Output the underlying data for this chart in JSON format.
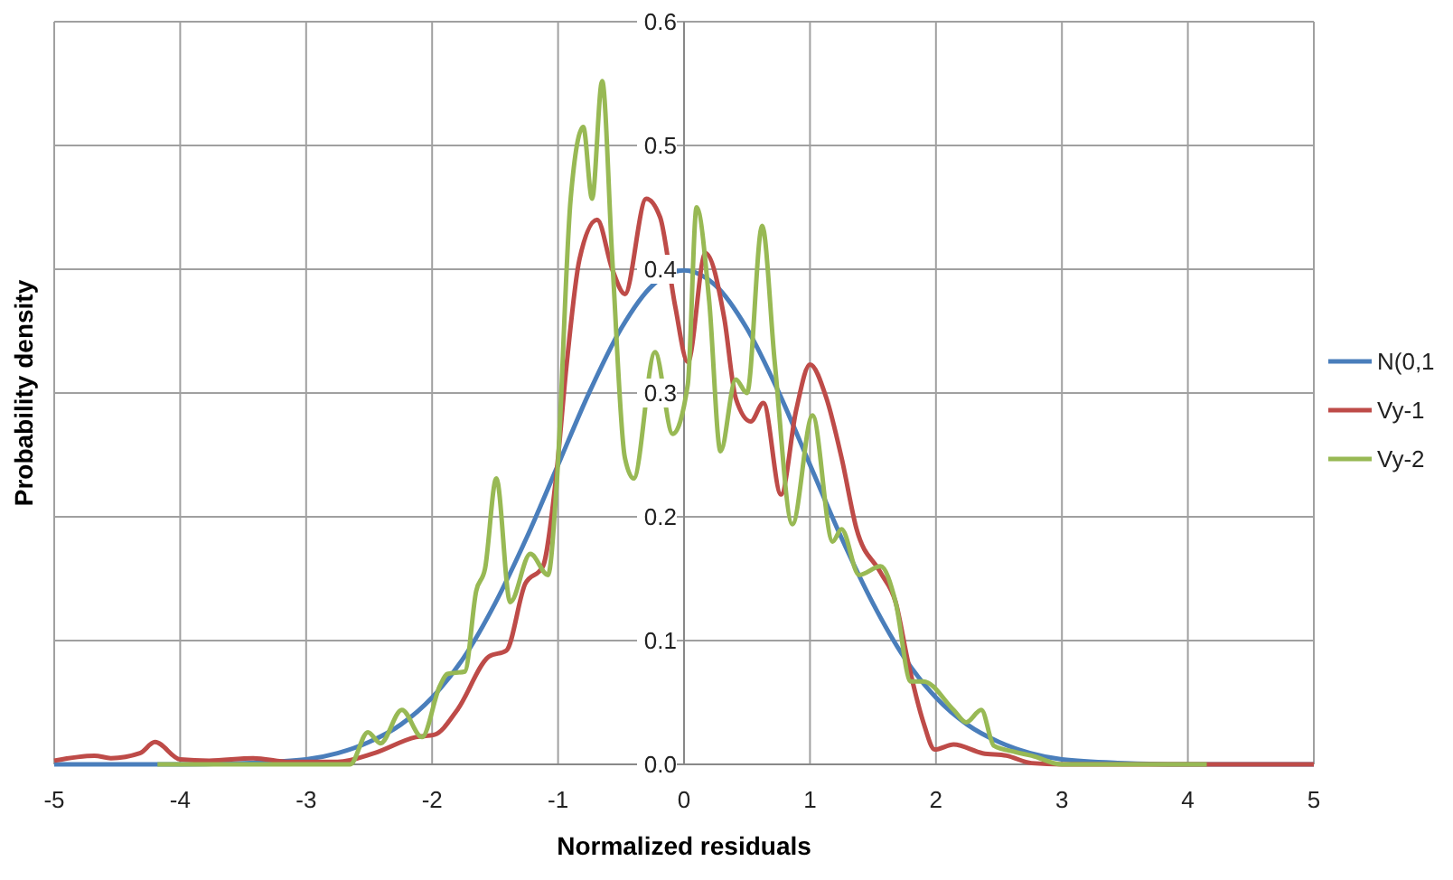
{
  "chart_data": {
    "type": "line",
    "xlabel": "Normalized residuals",
    "ylabel": "Probability density",
    "xlim": [
      -5,
      5
    ],
    "xticks": [
      -5,
      -4,
      -3,
      -2,
      -1,
      0,
      1,
      2,
      3,
      4,
      5
    ],
    "ylim": [
      0,
      0.6
    ],
    "yticks": [
      {
        "value": 0,
        "label": "0.0"
      },
      {
        "value": 0.1,
        "label": "0.1"
      },
      {
        "value": 0.2,
        "label": "0.2"
      },
      {
        "value": 0.3,
        "label": "0.3"
      },
      {
        "value": 0.4,
        "label": "0.4"
      },
      {
        "value": 0.5,
        "label": "0.5"
      },
      {
        "value": 0.6,
        "label": "0.6"
      }
    ],
    "grid": true,
    "legend": "right",
    "marker": "none",
    "line_style": "solid",
    "series": [
      {
        "name": "N(0,1",
        "color": "#4a7ebb",
        "x": [
          -5,
          -4,
          -3.5,
          -3,
          -2.75,
          -2.5,
          -2.25,
          -2,
          -1.75,
          -1.5,
          -1.25,
          -1,
          -0.75,
          -0.5,
          -0.25,
          0,
          0.25,
          0.5,
          0.75,
          1,
          1.25,
          1.5,
          1.75,
          2,
          2.25,
          2.5,
          2.75,
          3,
          3.5,
          4,
          5
        ],
        "values": [
          0,
          0,
          0.001,
          0.004,
          0.009,
          0.018,
          0.032,
          0.054,
          0.086,
          0.13,
          0.183,
          0.242,
          0.301,
          0.352,
          0.387,
          0.399,
          0.387,
          0.352,
          0.301,
          0.242,
          0.183,
          0.13,
          0.086,
          0.054,
          0.032,
          0.018,
          0.009,
          0.004,
          0.001,
          0,
          0
        ]
      },
      {
        "name": "Vy-1",
        "color": "#be4b48",
        "x": [
          -5,
          -4.68,
          -4.55,
          -4.32,
          -4.2,
          -4,
          -3.77,
          -3.42,
          -3.13,
          -2.75,
          -2.46,
          -2.13,
          -1.98,
          -1.8,
          -1.55,
          -1.41,
          -1.26,
          -1.12,
          -1.02,
          -0.93,
          -0.83,
          -0.69,
          -0.57,
          -0.47,
          -0.3,
          -0.19,
          -0.07,
          0.03,
          0.17,
          0.32,
          0.41,
          0.53,
          0.63,
          0.77,
          0.89,
          1,
          1.13,
          1.25,
          1.37,
          1.56,
          1.68,
          1.78,
          1.9,
          1.99,
          2.14,
          2.37,
          2.56,
          2.76,
          3,
          4,
          5
        ],
        "values": [
          0.003,
          0.007,
          0.005,
          0.009,
          0.018,
          0.004,
          0.003,
          0.005,
          0.002,
          0.002,
          0.009,
          0.022,
          0.024,
          0.044,
          0.087,
          0.092,
          0.146,
          0.16,
          0.228,
          0.325,
          0.408,
          0.44,
          0.4,
          0.38,
          0.457,
          0.442,
          0.37,
          0.325,
          0.413,
          0.36,
          0.296,
          0.277,
          0.292,
          0.218,
          0.286,
          0.323,
          0.296,
          0.248,
          0.19,
          0.155,
          0.131,
          0.082,
          0.034,
          0.012,
          0.016,
          0.009,
          0.007,
          0.001,
          0,
          0,
          0
        ]
      },
      {
        "name": "Vy-2",
        "color": "#98b954",
        "x": [
          -4.18,
          -3,
          -2.65,
          -2.51,
          -2.41,
          -2.24,
          -2.08,
          -1.94,
          -1.88,
          -1.74,
          -1.65,
          -1.58,
          -1.49,
          -1.38,
          -1.22,
          -1.08,
          -1.01,
          -0.9,
          -0.8,
          -0.73,
          -0.65,
          -0.57,
          -0.47,
          -0.4,
          -0.23,
          -0.09,
          0.03,
          0.1,
          0.2,
          0.29,
          0.41,
          0.5,
          0.62,
          0.72,
          0.86,
          1.02,
          1.18,
          1.25,
          1.39,
          1.56,
          1.68,
          1.8,
          1.9,
          2.14,
          2.24,
          2.36,
          2.46,
          2.63,
          2.76,
          3,
          4.15
        ],
        "values": [
          0,
          0,
          0,
          0.026,
          0.017,
          0.044,
          0.022,
          0.063,
          0.073,
          0.075,
          0.14,
          0.158,
          0.231,
          0.131,
          0.17,
          0.153,
          0.228,
          0.457,
          0.515,
          0.457,
          0.552,
          0.409,
          0.248,
          0.231,
          0.333,
          0.267,
          0.307,
          0.45,
          0.374,
          0.253,
          0.311,
          0.3,
          0.435,
          0.325,
          0.194,
          0.282,
          0.18,
          0.19,
          0.153,
          0.16,
          0.131,
          0.067,
          0.067,
          0.044,
          0.034,
          0.044,
          0.015,
          0.01,
          0.007,
          0,
          0
        ]
      }
    ]
  }
}
